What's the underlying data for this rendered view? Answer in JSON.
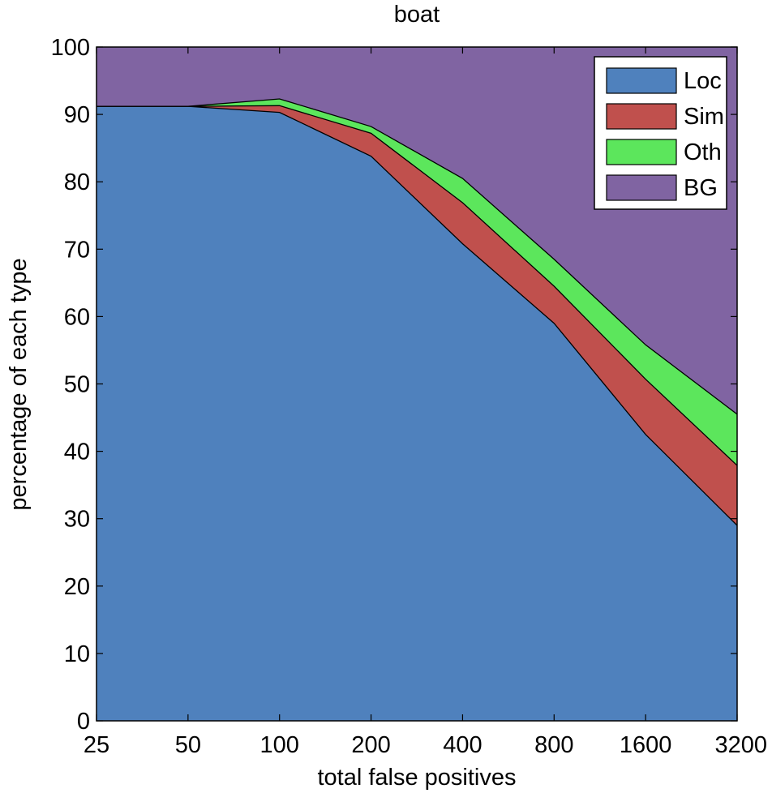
{
  "chart_data": {
    "type": "area",
    "stacked": true,
    "title": "boat",
    "xlabel": "total false positives",
    "ylabel": "percentage of each type",
    "x": [
      "25",
      "50",
      "100",
      "200",
      "400",
      "800",
      "1600",
      "3200"
    ],
    "xscale": "log2",
    "ylim": [
      0,
      100
    ],
    "yticks": [
      "0",
      "10",
      "20",
      "30",
      "40",
      "50",
      "60",
      "70",
      "80",
      "90",
      "100"
    ],
    "grid": false,
    "legend_position": "top-right",
    "series": [
      {
        "name": "Loc",
        "color": "#4f81bd",
        "values": [
          91.2,
          91.2,
          90.3,
          83.8,
          70.8,
          59.0,
          42.5,
          29.0
        ]
      },
      {
        "name": "Sim",
        "color": "#c0504d",
        "values": [
          0,
          0,
          1.0,
          3.4,
          6.1,
          5.5,
          8.2,
          8.9
        ]
      },
      {
        "name": "Oth",
        "color": "#5ce65c",
        "values": [
          0,
          0,
          1.0,
          1.0,
          3.6,
          4.0,
          5.1,
          7.6
        ]
      },
      {
        "name": "BG",
        "color": "#8064a2",
        "values": [
          8.8,
          8.8,
          7.7,
          11.8,
          19.5,
          31.5,
          44.2,
          54.5
        ]
      }
    ]
  }
}
